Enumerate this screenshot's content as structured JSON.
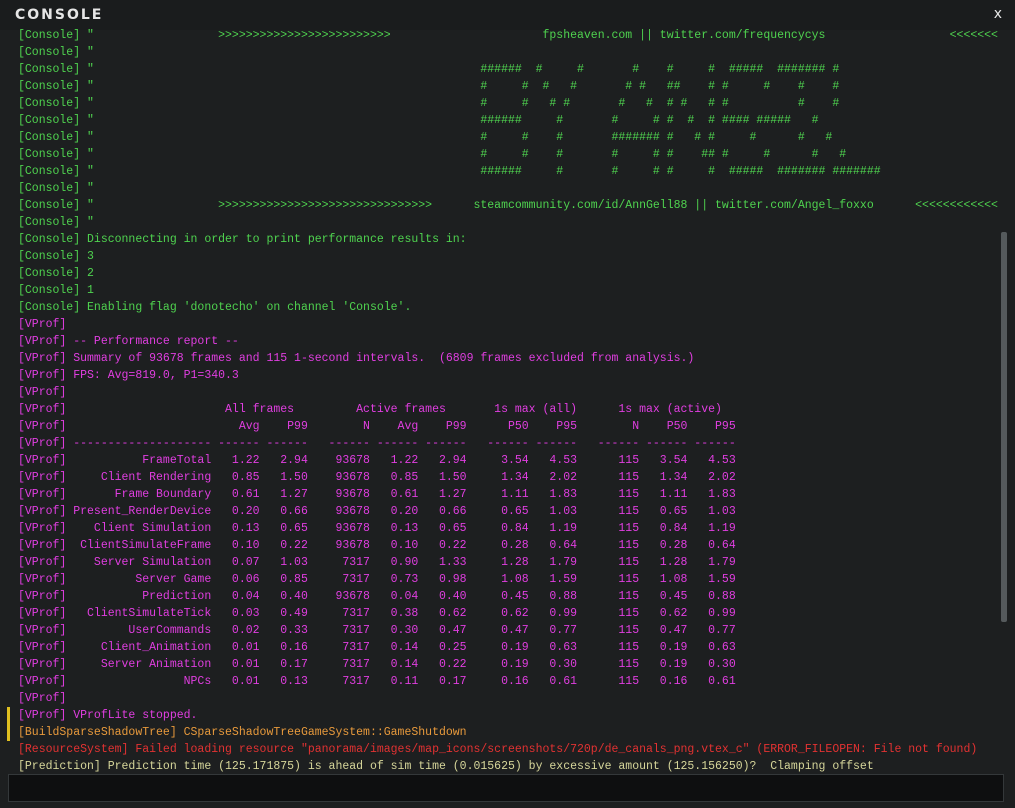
{
  "title": "CONSOLE",
  "close": "x",
  "lines": [
    {
      "text": "[Console] \"                  >>>>>>>>>>>>>>>>>>>>>>>>>                      fpsheaven.com || twitter.com/frequencycys                  <<<<<<<",
      "color": "#4fd34f"
    },
    {
      "text": "[Console] \"",
      "color": "#4fd34f"
    },
    {
      "text": "[Console] \"                                                        ######  #     #       #    #     #  #####  ####### #",
      "color": "#4fd34f"
    },
    {
      "text": "[Console] \"                                                        #     #  #   #       # #   ##    # #     #    #    #",
      "color": "#4fd34f"
    },
    {
      "text": "[Console] \"                                                        #     #   # #       #   #  # #   # #          #    #",
      "color": "#4fd34f"
    },
    {
      "text": "[Console] \"                                                        ######     #       #     # #  #  # #### #####   #",
      "color": "#4fd34f"
    },
    {
      "text": "[Console] \"                                                        #     #    #       ####### #   # #     #      #   #",
      "color": "#4fd34f"
    },
    {
      "text": "[Console] \"                                                        #     #    #       #     # #    ## #     #      #   #",
      "color": "#4fd34f"
    },
    {
      "text": "[Console] \"                                                        ######     #       #     # #     #  #####  ####### #######",
      "color": "#4fd34f"
    },
    {
      "text": "[Console] \"",
      "color": "#4fd34f"
    },
    {
      "text": "[Console] \"                  >>>>>>>>>>>>>>>>>>>>>>>>>>>>>>>      steamcommunity.com/id/AnnGell88 || twitter.com/Angel_foxxo      <<<<<<<<<<<<",
      "color": "#4fd34f"
    },
    {
      "text": "[Console] \"",
      "color": "#4fd34f"
    },
    {
      "text": "[Console] Disconnecting in order to print performance results in:",
      "color": "#4fd34f"
    },
    {
      "text": "[Console] 3",
      "color": "#4fd34f"
    },
    {
      "text": "[Console] 2",
      "color": "#4fd34f"
    },
    {
      "text": "[Console] 1",
      "color": "#4fd34f"
    },
    {
      "text": "[Console] Enabling flag 'donotecho' on channel 'Console'.",
      "color": "#4fd34f"
    },
    {
      "text": "[VProf]",
      "color": "#e03ee0"
    },
    {
      "text": "[VProf] -- Performance report --",
      "color": "#e03ee0"
    },
    {
      "text": "[VProf] Summary of 93678 frames and 115 1-second intervals.  (6809 frames excluded from analysis.)",
      "color": "#e03ee0"
    },
    {
      "text": "[VProf] FPS: Avg=819.0, P1=340.3",
      "color": "#e03ee0"
    },
    {
      "text": "[VProf]",
      "color": "#e03ee0"
    },
    {
      "text": "[VProf]                       All frames         Active frames       1s max (all)      1s max (active)",
      "color": "#e03ee0"
    },
    {
      "text": "[VProf]                         Avg    P99        N    Avg    P99      P50    P95        N    P50    P95",
      "color": "#e03ee0"
    },
    {
      "text": "[VProf] -------------------- ------ ------   ------ ------ ------   ------ ------   ------ ------ ------",
      "color": "#e03ee0"
    },
    {
      "text": "[VProf]           FrameTotal   1.22   2.94    93678   1.22   2.94     3.54   4.53      115   3.54   4.53",
      "color": "#e03ee0"
    },
    {
      "text": "[VProf]     Client Rendering   0.85   1.50    93678   0.85   1.50     1.34   2.02      115   1.34   2.02",
      "color": "#e03ee0"
    },
    {
      "text": "[VProf]       Frame Boundary   0.61   1.27    93678   0.61   1.27     1.11   1.83      115   1.11   1.83",
      "color": "#e03ee0"
    },
    {
      "text": "[VProf] Present_RenderDevice   0.20   0.66    93678   0.20   0.66     0.65   1.03      115   0.65   1.03",
      "color": "#e03ee0"
    },
    {
      "text": "[VProf]    Client Simulation   0.13   0.65    93678   0.13   0.65     0.84   1.19      115   0.84   1.19",
      "color": "#e03ee0"
    },
    {
      "text": "[VProf]  ClientSimulateFrame   0.10   0.22    93678   0.10   0.22     0.28   0.64      115   0.28   0.64",
      "color": "#e03ee0"
    },
    {
      "text": "[VProf]    Server Simulation   0.07   1.03     7317   0.90   1.33     1.28   1.79      115   1.28   1.79",
      "color": "#e03ee0"
    },
    {
      "text": "[VProf]          Server Game   0.06   0.85     7317   0.73   0.98     1.08   1.59      115   1.08   1.59",
      "color": "#e03ee0"
    },
    {
      "text": "[VProf]           Prediction   0.04   0.40    93678   0.04   0.40     0.45   0.88      115   0.45   0.88",
      "color": "#e03ee0"
    },
    {
      "text": "[VProf]   ClientSimulateTick   0.03   0.49     7317   0.38   0.62     0.62   0.99      115   0.62   0.99",
      "color": "#e03ee0"
    },
    {
      "text": "[VProf]         UserCommands   0.02   0.33     7317   0.30   0.47     0.47   0.77      115   0.47   0.77",
      "color": "#e03ee0"
    },
    {
      "text": "[VProf]     Client_Animation   0.01   0.16     7317   0.14   0.25     0.19   0.63      115   0.19   0.63",
      "color": "#e03ee0"
    },
    {
      "text": "[VProf]     Server Animation   0.01   0.17     7317   0.14   0.22     0.19   0.30      115   0.19   0.30",
      "color": "#e03ee0"
    },
    {
      "text": "[VProf]                 NPCs   0.01   0.13     7317   0.11   0.17     0.16   0.61      115   0.16   0.61",
      "color": "#e03ee0"
    },
    {
      "text": "[VProf]",
      "color": "#e03ee0"
    },
    {
      "text": "[VProf] VProfLite stopped.",
      "color": "#e03ee0"
    },
    {
      "text": "[BuildSparseShadowTree] CSparseShadowTreeGameSystem::GameShutdown",
      "color": "#e89a3c"
    },
    {
      "text": "[ResourceSystem] Failed loading resource \"panorama/images/map_icons/screenshots/720p/de_canals_png.vtex_c\" (ERROR_FILEOPEN: File not found)",
      "color": "#e23232"
    },
    {
      "text": "[Prediction] Prediction time (125.171875) is ahead of sim time (0.015625) by excessive amount (125.156250)?  Clamping offset",
      "color": "#d6d69a"
    }
  ]
}
